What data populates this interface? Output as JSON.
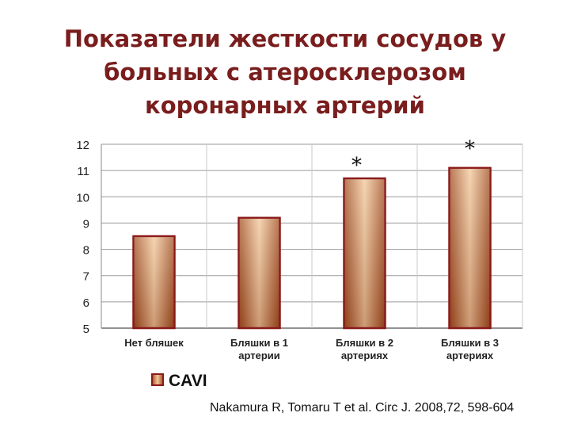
{
  "title_lines": [
    "Показатели жесткости сосудов у",
    "больных с атеросклерозом",
    "коронарных артерий"
  ],
  "citation": "Nakamura R, Tomaru T et al. Circ J. 2008,72, 598-604",
  "colors": {
    "title": "#7a1d1d",
    "bar_outline": "#8b1a1a",
    "bar_dark": "#a04a1c",
    "bar_light": "#f2c89a",
    "grid": "#9a9a9a"
  },
  "chart_data": {
    "type": "bar",
    "categories": [
      [
        "Нет бляшек"
      ],
      [
        "Бляшки в 1",
        "артерии"
      ],
      [
        "Бляшки в 2",
        "артериях"
      ],
      [
        "Бляшки в 3",
        "артериях"
      ]
    ],
    "series": [
      {
        "name": "CAVI",
        "values": [
          8.5,
          9.2,
          10.7,
          11.1
        ]
      }
    ],
    "annotations": [
      "",
      "",
      "*",
      "*"
    ],
    "ylim": [
      5,
      12
    ],
    "yticks": [
      5,
      6,
      7,
      8,
      9,
      10,
      11,
      12
    ],
    "grid": true,
    "legend": "bottom-left"
  }
}
